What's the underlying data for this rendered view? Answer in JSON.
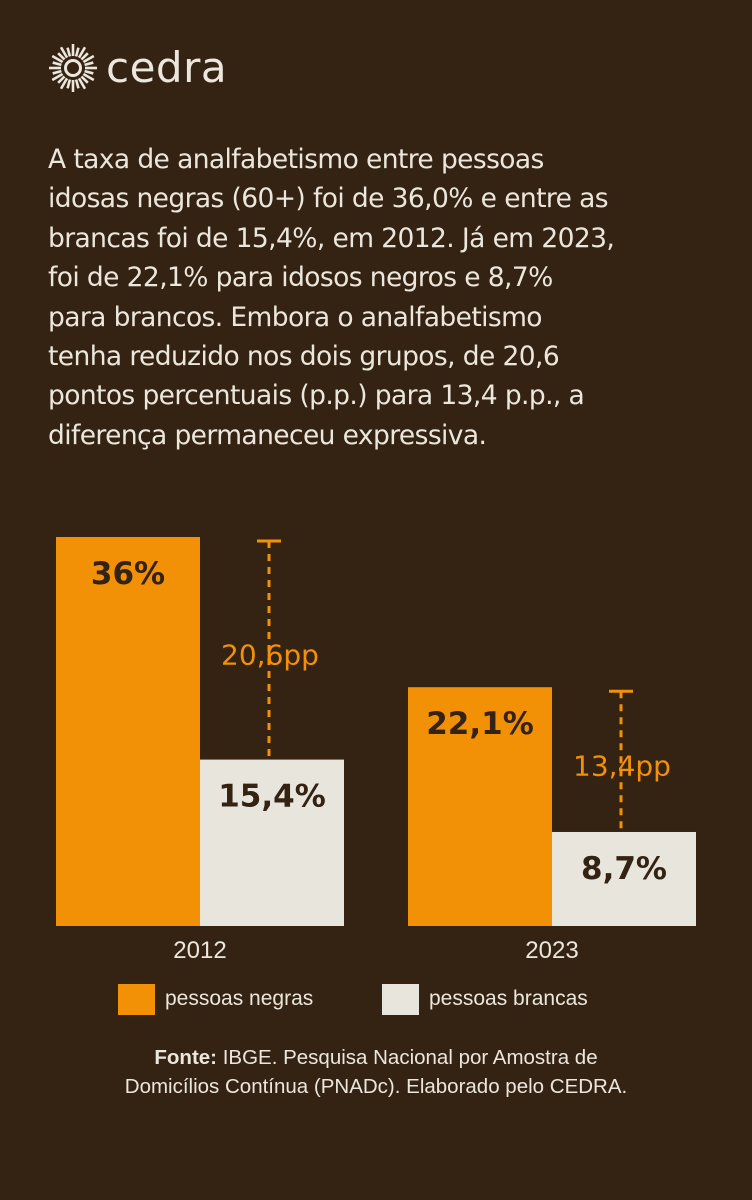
{
  "brand": {
    "name": "cedra",
    "icon": "sun-burst-icon"
  },
  "intro_text": "A taxa de analfabetismo entre pessoas\nidosas negras (60+) foi de 36,0% e entre as\nbrancas foi de 15,4%, em 2012. Já em 2023,\nfoi de 22,1% para idosos negros e 8,7%\npara brancos. Embora o analfabetismo\ntenha reduzido nos dois grupos, de 20,6\npontos percentuais (p.p.) para 13,4 p.p., a\ndiferença permaneceu expressiva.",
  "colors": {
    "background": "#342213",
    "negras": "#f29105",
    "brancas": "#e8e6dc",
    "text": "#ebe7dc",
    "label_dark": "#342213"
  },
  "chart_data": {
    "type": "bar",
    "title": "",
    "xlabel": "",
    "ylabel": "",
    "categories": [
      "2012",
      "2023"
    ],
    "series": [
      {
        "name": "pessoas negras",
        "values": [
          36.0,
          22.1
        ],
        "labels": [
          "36%",
          "22,1%"
        ]
      },
      {
        "name": "pessoas brancas",
        "values": [
          15.4,
          8.7
        ],
        "labels": [
          "15,4%",
          "8,7%"
        ]
      }
    ],
    "gaps": [
      {
        "category": "2012",
        "value": 20.6,
        "label": "20,6pp"
      },
      {
        "category": "2023",
        "value": 13.4,
        "label": "13,4pp"
      }
    ],
    "ylim": [
      0,
      36
    ],
    "grid": false,
    "legend_position": "bottom"
  },
  "legend": [
    {
      "label": "pessoas negras"
    },
    {
      "label": "pessoas brancas"
    }
  ],
  "source": {
    "label": "Fonte:",
    "line1": " IBGE. Pesquisa Nacional por Amostra de",
    "line2": "Domicílios Contínua (PNADc). Elaborado pelo CEDRA."
  }
}
